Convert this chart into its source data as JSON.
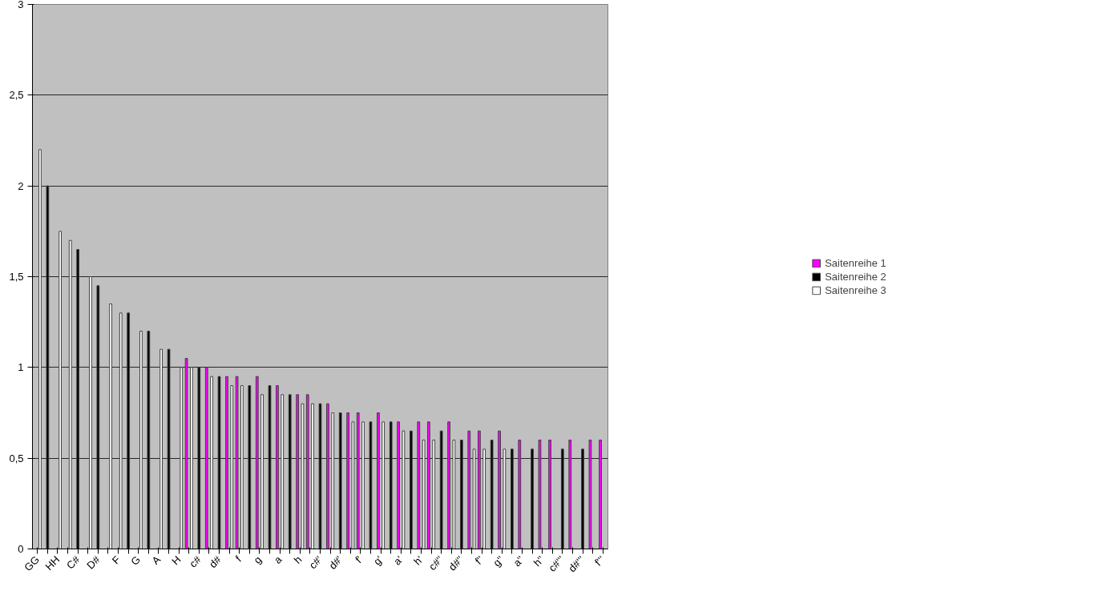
{
  "chart_data": {
    "type": "bar",
    "categories": [
      "GG",
      null,
      "HH",
      null,
      "C#",
      null,
      "D#",
      null,
      "F",
      null,
      "G",
      null,
      "A",
      null,
      "H",
      null,
      "c#",
      null,
      "d#",
      null,
      "f",
      null,
      "g",
      null,
      "a",
      null,
      "h",
      null,
      "c#'",
      null,
      "d#'",
      null,
      "f'",
      null,
      "g'",
      null,
      "a'",
      null,
      "h'",
      null,
      "c#''",
      null,
      "d#''",
      null,
      "f''",
      null,
      "g''",
      null,
      "a''",
      null,
      "h''",
      null,
      "c#'''",
      null,
      "d#'''",
      null,
      "f'''"
    ],
    "series": [
      {
        "name": "Saitenreihe 1",
        "color": "#ff00ff",
        "values": [
          null,
          null,
          null,
          null,
          null,
          null,
          null,
          null,
          null,
          null,
          null,
          null,
          null,
          null,
          null,
          1.05,
          null,
          1.0,
          null,
          0.95,
          0.95,
          null,
          0.95,
          null,
          0.9,
          null,
          0.85,
          0.85,
          null,
          0.8,
          null,
          0.75,
          0.75,
          null,
          0.75,
          null,
          0.7,
          null,
          0.7,
          0.7,
          null,
          0.7,
          null,
          0.65,
          0.65,
          null,
          0.65,
          null,
          0.6,
          null,
          0.6,
          0.6,
          null,
          0.6,
          null,
          0.6,
          0.6
        ]
      },
      {
        "name": "Saitenreihe 2",
        "color": "#000000",
        "values": [
          null,
          2.0,
          null,
          null,
          1.65,
          null,
          1.45,
          null,
          null,
          1.3,
          null,
          1.2,
          null,
          1.1,
          null,
          null,
          1.0,
          null,
          0.95,
          null,
          null,
          0.9,
          null,
          0.9,
          null,
          0.85,
          null,
          null,
          0.8,
          null,
          0.75,
          null,
          null,
          0.7,
          null,
          0.7,
          null,
          0.65,
          null,
          null,
          0.65,
          null,
          0.6,
          null,
          null,
          0.6,
          null,
          0.55,
          null,
          0.55,
          null,
          null,
          0.55,
          null,
          0.55,
          null,
          null
        ]
      },
      {
        "name": "Saitenreihe 3",
        "color": "#ffffff",
        "values": [
          2.2,
          null,
          1.75,
          1.7,
          null,
          1.5,
          null,
          1.35,
          1.3,
          null,
          1.2,
          null,
          1.1,
          null,
          1.0,
          1.0,
          null,
          0.95,
          null,
          0.9,
          0.9,
          null,
          0.85,
          null,
          0.85,
          null,
          0.8,
          0.8,
          null,
          0.75,
          null,
          0.7,
          0.7,
          null,
          0.7,
          null,
          0.65,
          null,
          0.6,
          0.6,
          null,
          0.6,
          null,
          0.55,
          0.55,
          null,
          0.55,
          null,
          null,
          null,
          null,
          null,
          null,
          null,
          null,
          null,
          null
        ]
      }
    ],
    "ylim": [
      0,
      3
    ],
    "yticks": [
      0,
      {
        "value": 0.5,
        "label": "0,5"
      },
      1,
      {
        "value": 1.5,
        "label": "1,5"
      },
      2,
      {
        "value": 2.5,
        "label": "2,5"
      },
      3
    ],
    "grid": "y",
    "legend": "right"
  }
}
